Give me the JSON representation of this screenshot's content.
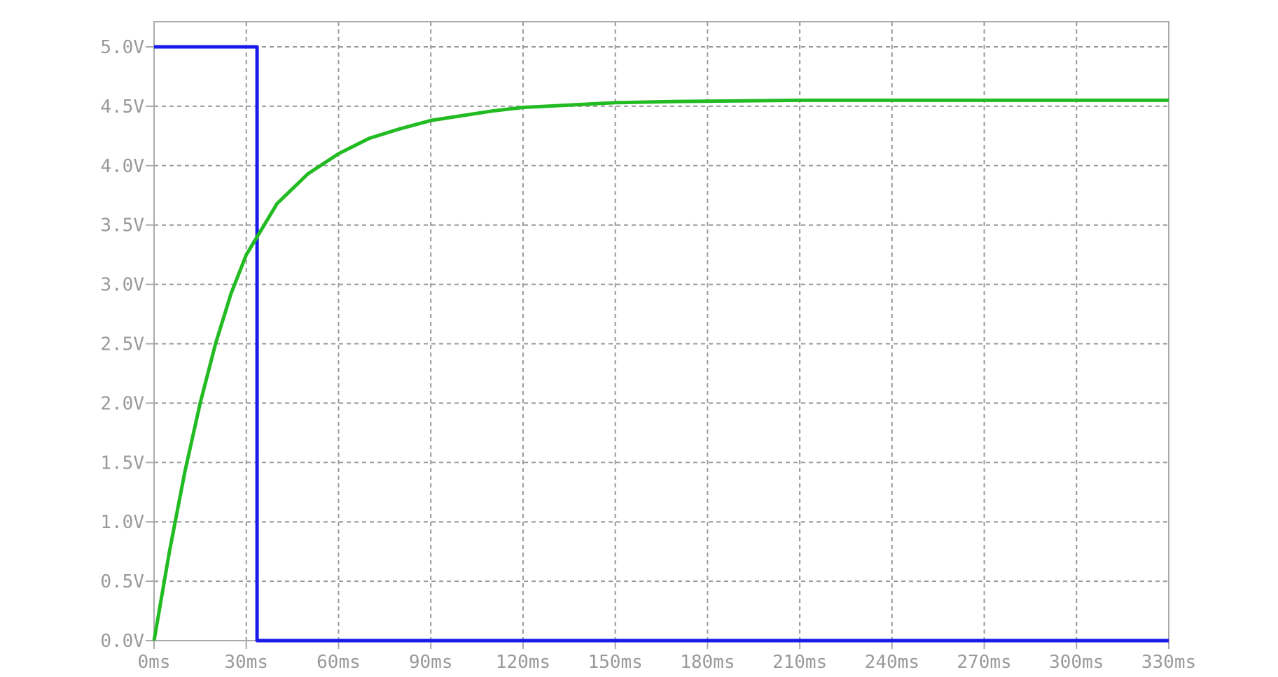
{
  "chart_data": {
    "type": "line",
    "title": "",
    "xlabel": "",
    "ylabel": "",
    "x_unit": "ms",
    "y_unit": "V",
    "xlim": [
      0,
      330
    ],
    "ylim": [
      0,
      5
    ],
    "grid": true,
    "legend": "none",
    "x_ticks": [
      "0ms",
      "30ms",
      "60ms",
      "90ms",
      "120ms",
      "150ms",
      "180ms",
      "210ms",
      "240ms",
      "270ms",
      "300ms",
      "330ms"
    ],
    "x_tick_values": [
      0,
      30,
      60,
      90,
      120,
      150,
      180,
      210,
      240,
      270,
      300,
      330
    ],
    "y_ticks": [
      "0.0V",
      "0.5V",
      "1.0V",
      "1.5V",
      "2.0V",
      "2.5V",
      "3.0V",
      "3.5V",
      "4.0V",
      "4.5V",
      "5.0V"
    ],
    "y_tick_values": [
      0,
      0.5,
      1.0,
      1.5,
      2.0,
      2.5,
      3.0,
      3.5,
      4.0,
      4.5,
      5.0
    ],
    "series": [
      {
        "color": "#1a1aeb",
        "x": [
          0,
          33.5,
          33.5,
          330
        ],
        "y": [
          5.0,
          5.0,
          0.0,
          0.0
        ]
      },
      {
        "color": "#22bb22",
        "x": [
          0,
          5,
          10,
          15,
          20,
          25,
          30,
          33.5,
          40,
          50,
          60,
          70,
          80,
          90,
          100,
          110,
          120,
          135,
          150,
          170,
          190,
          210,
          240,
          270,
          300,
          330
        ],
        "y": [
          0.0,
          0.75,
          1.42,
          2.0,
          2.5,
          2.92,
          3.25,
          3.4,
          3.68,
          3.93,
          4.1,
          4.23,
          4.31,
          4.38,
          4.42,
          4.46,
          4.49,
          4.51,
          4.53,
          4.54,
          4.545,
          4.55,
          4.55,
          4.55,
          4.55,
          4.55
        ]
      }
    ],
    "colors": {
      "axis": "#aaaaaa",
      "grid": "#999999",
      "tick_text": "#999999"
    }
  }
}
